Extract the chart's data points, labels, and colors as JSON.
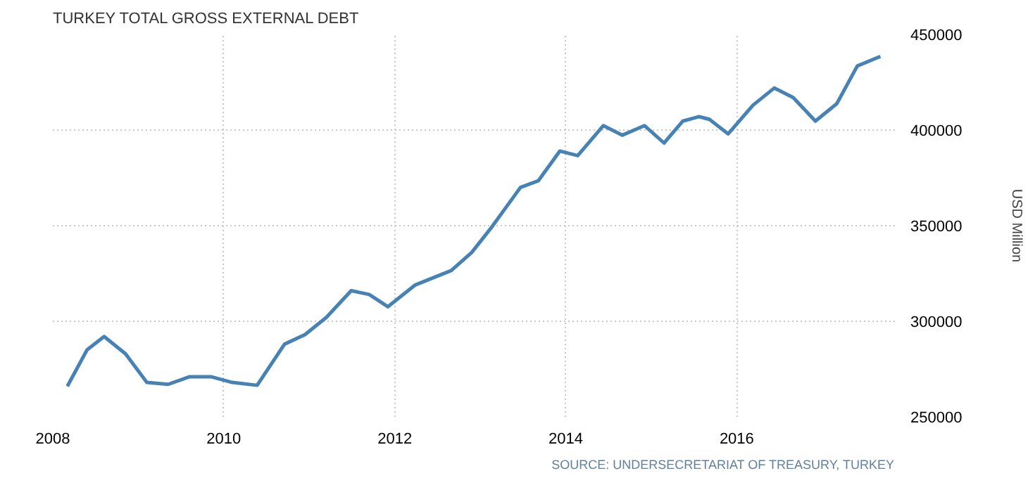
{
  "chart_data": {
    "type": "line",
    "title": "TURKEY TOTAL GROSS EXTERNAL DEBT",
    "ylabel": "USD Million",
    "annotations": [
      "SOURCE: UNDERSECRETARIAT OF TREASURY, TURKEY"
    ],
    "x": [
      2008.17,
      2008.4,
      2008.6,
      2008.85,
      2009.1,
      2009.35,
      2009.6,
      2009.85,
      2010.1,
      2010.39,
      2010.71,
      2010.95,
      2011.2,
      2011.49,
      2011.7,
      2011.92,
      2012.24,
      2012.66,
      2012.9,
      2013.14,
      2013.47,
      2013.68,
      2013.93,
      2014.14,
      2014.44,
      2014.66,
      2014.92,
      2015.15,
      2015.37,
      2015.56,
      2015.68,
      2015.9,
      2016.19,
      2016.44,
      2016.66,
      2016.92,
      2017.17,
      2017.41,
      2017.68
    ],
    "series": [
      {
        "color": "#4682b4",
        "values": [
          266000,
          285000,
          292000,
          283000,
          268000,
          267000,
          271000,
          271000,
          268000,
          266500,
          288000,
          293000,
          302000,
          316000,
          314000,
          307600,
          319000,
          326500,
          336000,
          349600,
          370000,
          373500,
          389000,
          386600,
          402300,
          397300,
          402300,
          393200,
          404700,
          407000,
          405600,
          398000,
          413000,
          422000,
          417000,
          404700,
          413800,
          433500,
          438500
        ]
      }
    ],
    "xlim": [
      2008,
      2017.85
    ],
    "xticks": [
      2008,
      2010,
      2012,
      2014,
      2016
    ],
    "ylim": [
      250000,
      450000
    ],
    "yticks": [
      250000,
      300000,
      350000,
      400000,
      450000
    ],
    "grid": true,
    "line_style": "solid",
    "marker": "none"
  }
}
